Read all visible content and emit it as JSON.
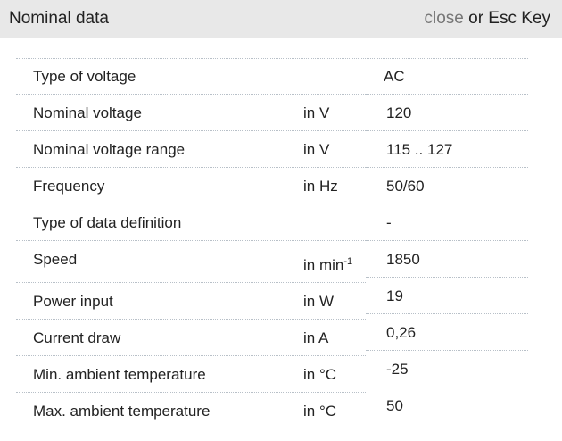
{
  "header": {
    "title": "Nominal data",
    "close_label": "close",
    "close_suffix": " or Esc Key"
  },
  "rows": [
    {
      "label": "Type of voltage",
      "unit": "",
      "value": "AC"
    },
    {
      "label": "Nominal voltage",
      "unit": "in V",
      "value": "120"
    },
    {
      "label": "Nominal voltage range",
      "unit": "in V",
      "value": "115 .. 127"
    },
    {
      "label": "Frequency",
      "unit": "in Hz",
      "value": "50/60"
    },
    {
      "label": "Type of data definition",
      "unit": "",
      "value": "-"
    },
    {
      "label": "Speed",
      "unit": "in min",
      "unit_sup": "-1",
      "value": "1850"
    },
    {
      "label": "Power input",
      "unit": "in W",
      "value": "19"
    },
    {
      "label": "Current draw",
      "unit": "in A",
      "value": "0,26"
    },
    {
      "label": "Min. ambient temperature",
      "unit": "in °C",
      "value": "-25"
    },
    {
      "label": "Max. ambient temperature",
      "unit": "in °C",
      "value": "50"
    }
  ]
}
